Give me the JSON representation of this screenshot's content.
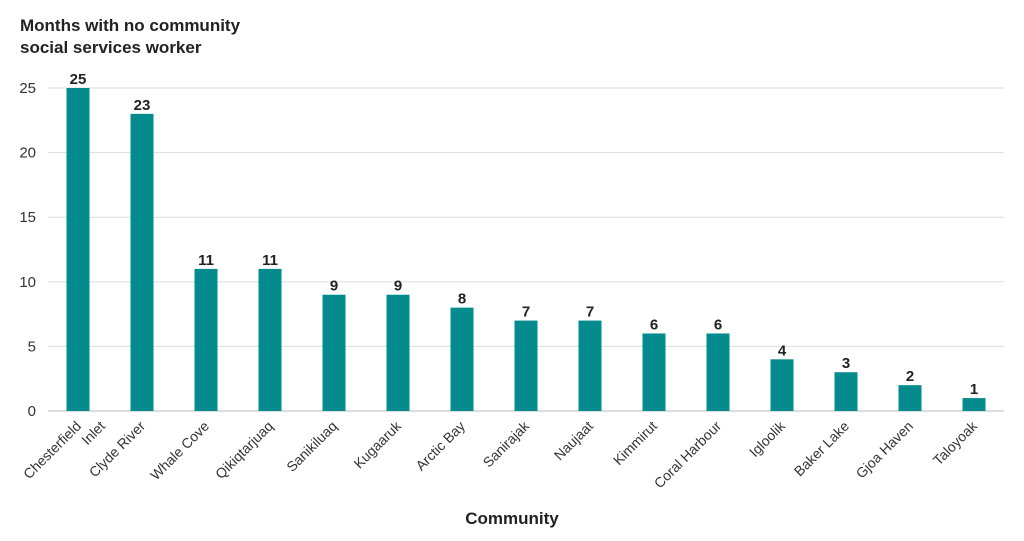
{
  "chart_data": {
    "type": "bar",
    "title": "Months with no community social services worker",
    "title_lines": [
      "Months with no community",
      "social services worker"
    ],
    "xlabel": "Community",
    "ylabel": "",
    "ylim": [
      0,
      25
    ],
    "yticks": [
      0,
      5,
      10,
      15,
      20,
      25
    ],
    "grid": true,
    "bar_color": "#048B8D",
    "categories": [
      "Chesterfield Inlet",
      "Clyde River",
      "Whale Cove",
      "Qikiqtarjuaq",
      "Sanikiluaq",
      "Kugaaruk",
      "Arctic Bay",
      "Sanirajak",
      "Naujaat",
      "Kimmirut",
      "Coral Harbour",
      "Igloolik",
      "Baker Lake",
      "Gjoa Haven",
      "Taloyoak"
    ],
    "values": [
      25,
      23,
      11,
      11,
      9,
      9,
      8,
      7,
      7,
      6,
      6,
      4,
      3,
      2,
      1
    ]
  }
}
